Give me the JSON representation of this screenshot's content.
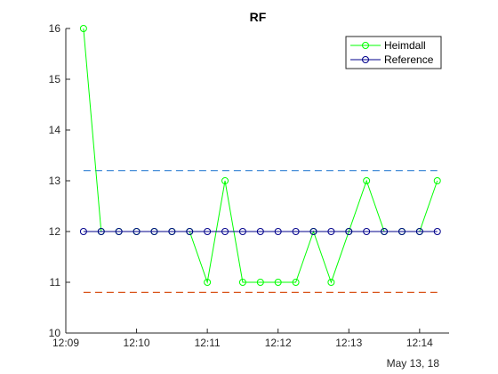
{
  "chart_data": {
    "type": "line",
    "title": "RF",
    "xlabel": "",
    "ylabel": "",
    "date_label": "May 13, 18",
    "x_range": [
      "12:09",
      "12:14:25"
    ],
    "ylim": [
      10,
      16
    ],
    "x_ticks": [
      "12:09",
      "12:10",
      "12:11",
      "12:12",
      "12:13",
      "12:14"
    ],
    "y_ticks": [
      10,
      11,
      12,
      13,
      14,
      15,
      16
    ],
    "grid": false,
    "legend_position": "top-right",
    "x": [
      "12:09:15",
      "12:09:30",
      "12:09:45",
      "12:10:00",
      "12:10:15",
      "12:10:30",
      "12:10:45",
      "12:11:00",
      "12:11:15",
      "12:11:30",
      "12:11:45",
      "12:12:00",
      "12:12:15",
      "12:12:30",
      "12:12:45",
      "12:13:00",
      "12:13:15",
      "12:13:30",
      "12:13:45",
      "12:14:00",
      "12:14:15"
    ],
    "series": [
      {
        "name": "Heimdall",
        "color": "#00ff00",
        "marker": "circle",
        "values": [
          16,
          12,
          12,
          12,
          12,
          12,
          12,
          11,
          13,
          11,
          11,
          11,
          11,
          12,
          11,
          12,
          13,
          12,
          12,
          12,
          13
        ]
      },
      {
        "name": "Reference",
        "color": "#00008b",
        "marker": "circle",
        "values": [
          12,
          12,
          12,
          12,
          12,
          12,
          12,
          12,
          12,
          12,
          12,
          12,
          12,
          12,
          12,
          12,
          12,
          12,
          12,
          12,
          12
        ]
      }
    ],
    "reference_lines": [
      {
        "y": 13.2,
        "color": "#4a90d9",
        "style": "dashed"
      },
      {
        "y": 10.8,
        "color": "#d95319",
        "style": "dashed"
      }
    ]
  }
}
